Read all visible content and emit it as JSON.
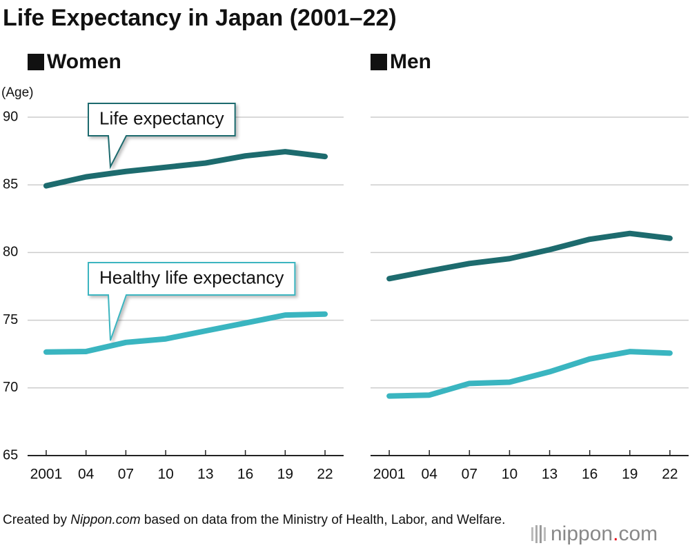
{
  "title": "Life Expectancy in Japan (2001–22)",
  "source": {
    "before": "Created by ",
    "site": "Nippon.com",
    "after": " based on data from the Ministry of Health, Labor, and Welfare."
  },
  "logo": {
    "name": "nippon",
    "dot": ".",
    "domain": "com"
  },
  "chart_data": [
    {
      "type": "line",
      "title": "Women",
      "ylabel": "(Age)",
      "x": [
        2001,
        2004,
        2007,
        2010,
        2013,
        2016,
        2019,
        2022
      ],
      "xlim": [
        1999.6,
        2023.4
      ],
      "xticks": [
        2001,
        {
          "value": 2004,
          "label": "04"
        },
        {
          "value": 2007,
          "label": "07"
        },
        {
          "value": 2010,
          "label": "10"
        },
        {
          "value": 2013,
          "label": "13"
        },
        {
          "value": 2016,
          "label": "16"
        },
        {
          "value": 2019,
          "label": "19"
        },
        {
          "value": 2022,
          "label": "22"
        }
      ],
      "ylim": [
        65,
        90
      ],
      "yticks": [
        65,
        70,
        75,
        80,
        85,
        90
      ],
      "grid": true,
      "series": [
        {
          "name": "Life expectancy",
          "color": "#1d6b6e",
          "values": [
            84.93,
            85.59,
            85.99,
            86.3,
            86.61,
            87.14,
            87.45,
            87.09
          ]
        },
        {
          "name": "Healthy life expectancy",
          "color": "#3ab5c0",
          "values": [
            72.65,
            72.69,
            73.36,
            73.62,
            74.21,
            74.79,
            75.38,
            75.45
          ]
        }
      ]
    },
    {
      "type": "line",
      "title": "Men",
      "show_ytick_labels": false,
      "x": [
        2001,
        2004,
        2007,
        2010,
        2013,
        2016,
        2019,
        2022
      ],
      "xlim": [
        1999.6,
        2023.4
      ],
      "xticks": [
        2001,
        {
          "value": 2004,
          "label": "04"
        },
        {
          "value": 2007,
          "label": "07"
        },
        {
          "value": 2010,
          "label": "10"
        },
        {
          "value": 2013,
          "label": "13"
        },
        {
          "value": 2016,
          "label": "16"
        },
        {
          "value": 2019,
          "label": "19"
        },
        {
          "value": 2022,
          "label": "22"
        }
      ],
      "ylim": [
        65,
        90
      ],
      "yticks": [
        65,
        70,
        75,
        80,
        85,
        90
      ],
      "grid": true,
      "series": [
        {
          "color": "#1d6b6e",
          "values": [
            78.07,
            78.64,
            79.19,
            79.55,
            80.21,
            80.98,
            81.41,
            81.05
          ]
        },
        {
          "color": "#3ab5c0",
          "values": [
            69.4,
            69.47,
            70.33,
            70.42,
            71.19,
            72.14,
            72.68,
            72.57
          ]
        }
      ]
    }
  ]
}
